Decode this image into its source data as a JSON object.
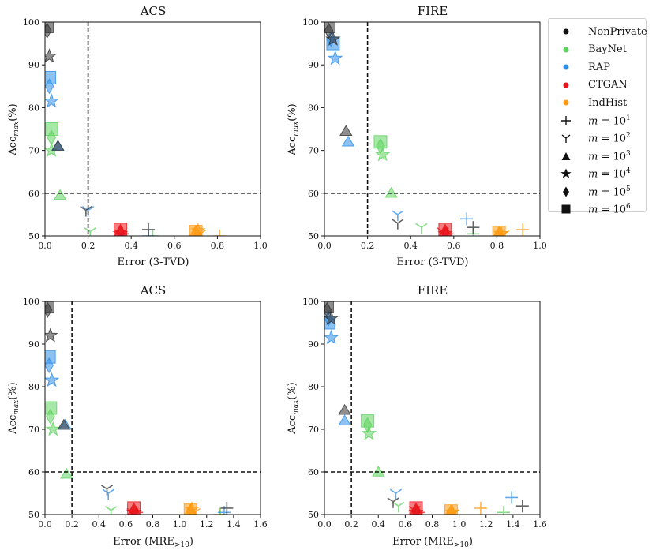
{
  "chart_data": [
    {
      "type": "scatter",
      "title": "ACS",
      "xlabel": "Error (3-TVD)",
      "ylabel": "Acc_max (%)",
      "xlim": [
        0,
        1.0
      ],
      "ylim": [
        50,
        100
      ],
      "xticks": [
        "0.0",
        "0.2",
        "0.4",
        "0.6",
        "0.8",
        "1.0"
      ],
      "xtick_values": [
        0,
        0.2,
        0.4,
        0.6,
        0.8,
        1.0
      ],
      "yticks": [
        "50",
        "60",
        "70",
        "80",
        "90",
        "100"
      ],
      "ytick_values": [
        50,
        60,
        70,
        80,
        90,
        100
      ],
      "hline": 60,
      "vline": 0.2,
      "points": [
        {
          "method": "NonPrivate",
          "m": "1e5",
          "x": 0.01,
          "y": 98
        },
        {
          "method": "NonPrivate",
          "m": "1e6",
          "x": 0.01,
          "y": 99
        },
        {
          "method": "NonPrivate",
          "m": "1e4",
          "x": 0.02,
          "y": 92
        },
        {
          "method": "NonPrivate",
          "m": "1e3",
          "x": 0.06,
          "y": 71
        },
        {
          "method": "NonPrivate",
          "m": "1e2",
          "x": 0.19,
          "y": 56
        },
        {
          "method": "NonPrivate",
          "m": "1e1",
          "x": 0.48,
          "y": 51.5
        },
        {
          "method": "BayNet",
          "m": "1e6",
          "x": 0.03,
          "y": 75
        },
        {
          "method": "BayNet",
          "m": "1e5",
          "x": 0.03,
          "y": 73
        },
        {
          "method": "BayNet",
          "m": "1e4",
          "x": 0.03,
          "y": 70
        },
        {
          "method": "BayNet",
          "m": "1e3",
          "x": 0.07,
          "y": 59.5
        },
        {
          "method": "BayNet",
          "m": "1e2",
          "x": 0.21,
          "y": 51
        },
        {
          "method": "BayNet",
          "m": "1e1",
          "x": 0.5,
          "y": 50
        },
        {
          "method": "RAP",
          "m": "1e6",
          "x": 0.02,
          "y": 87
        },
        {
          "method": "RAP",
          "m": "1e5",
          "x": 0.02,
          "y": 85
        },
        {
          "method": "RAP",
          "m": "1e4",
          "x": 0.03,
          "y": 81.5
        },
        {
          "method": "RAP",
          "m": "1e3",
          "x": 0.06,
          "y": 71
        },
        {
          "method": "RAP",
          "m": "1e2",
          "x": 0.2,
          "y": 56
        },
        {
          "method": "RAP",
          "m": "1e1",
          "x": 0.48,
          "y": 50
        },
        {
          "method": "CTGAN",
          "m": "1e6",
          "x": 0.35,
          "y": 51.5
        },
        {
          "method": "CTGAN",
          "m": "1e5",
          "x": 0.35,
          "y": 51
        },
        {
          "method": "CTGAN",
          "m": "1e4",
          "x": 0.35,
          "y": 50.5
        },
        {
          "method": "CTGAN",
          "m": "1e3",
          "x": 0.35,
          "y": 51
        },
        {
          "method": "CTGAN",
          "m": "1e2",
          "x": 0.35,
          "y": 50.5
        },
        {
          "method": "CTGAN",
          "m": "1e1",
          "x": 0.36,
          "y": 50.5
        },
        {
          "method": "IndHist",
          "m": "1e6",
          "x": 0.7,
          "y": 51
        },
        {
          "method": "IndHist",
          "m": "1e5",
          "x": 0.7,
          "y": 50.8
        },
        {
          "method": "IndHist",
          "m": "1e4",
          "x": 0.71,
          "y": 51.2
        },
        {
          "method": "IndHist",
          "m": "1e3",
          "x": 0.7,
          "y": 51
        },
        {
          "method": "IndHist",
          "m": "1e2",
          "x": 0.72,
          "y": 50.5
        },
        {
          "method": "IndHist",
          "m": "1e1",
          "x": 0.81,
          "y": 50
        }
      ]
    },
    {
      "type": "scatter",
      "title": "FIRE",
      "xlabel": "Error (3-TVD)",
      "ylabel": "Acc_max (%)",
      "xlim": [
        0,
        1.0
      ],
      "ylim": [
        50,
        100
      ],
      "xticks": [
        "0.0",
        "0.2",
        "0.4",
        "0.6",
        "0.8",
        "1.0"
      ],
      "xtick_values": [
        0,
        0.2,
        0.4,
        0.6,
        0.8,
        1.0
      ],
      "yticks": [
        "50",
        "60",
        "70",
        "80",
        "90",
        "100"
      ],
      "ytick_values": [
        50,
        60,
        70,
        80,
        90,
        100
      ],
      "hline": 60,
      "vline": 0.2,
      "points": [
        {
          "method": "NonPrivate",
          "m": "1e6",
          "x": 0.02,
          "y": 99
        },
        {
          "method": "NonPrivate",
          "m": "1e5",
          "x": 0.02,
          "y": 98
        },
        {
          "method": "NonPrivate",
          "m": "1e4",
          "x": 0.04,
          "y": 96
        },
        {
          "method": "NonPrivate",
          "m": "1e3",
          "x": 0.1,
          "y": 74.5
        },
        {
          "method": "NonPrivate",
          "m": "1e2",
          "x": 0.34,
          "y": 53
        },
        {
          "method": "NonPrivate",
          "m": "1e1",
          "x": 0.69,
          "y": 52
        },
        {
          "method": "BayNet",
          "m": "1e6",
          "x": 0.26,
          "y": 72
        },
        {
          "method": "BayNet",
          "m": "1e5",
          "x": 0.26,
          "y": 71
        },
        {
          "method": "BayNet",
          "m": "1e4",
          "x": 0.27,
          "y": 69
        },
        {
          "method": "BayNet",
          "m": "1e3",
          "x": 0.31,
          "y": 60
        },
        {
          "method": "BayNet",
          "m": "1e2",
          "x": 0.45,
          "y": 52
        },
        {
          "method": "BayNet",
          "m": "1e1",
          "x": 0.69,
          "y": 50.5
        },
        {
          "method": "RAP",
          "m": "1e6",
          "x": 0.04,
          "y": 95
        },
        {
          "method": "RAP",
          "m": "1e5",
          "x": 0.03,
          "y": 96
        },
        {
          "method": "RAP",
          "m": "1e4",
          "x": 0.05,
          "y": 91.5
        },
        {
          "method": "RAP",
          "m": "1e3",
          "x": 0.11,
          "y": 72
        },
        {
          "method": "RAP",
          "m": "1e2",
          "x": 0.34,
          "y": 55
        },
        {
          "method": "RAP",
          "m": "1e1",
          "x": 0.66,
          "y": 54
        },
        {
          "method": "CTGAN",
          "m": "1e6",
          "x": 0.56,
          "y": 51.5
        },
        {
          "method": "CTGAN",
          "m": "1e5",
          "x": 0.56,
          "y": 51
        },
        {
          "method": "CTGAN",
          "m": "1e4",
          "x": 0.56,
          "y": 50.5
        },
        {
          "method": "CTGAN",
          "m": "1e3",
          "x": 0.56,
          "y": 51
        },
        {
          "method": "CTGAN",
          "m": "1e2",
          "x": 0.55,
          "y": 51
        },
        {
          "method": "CTGAN",
          "m": "1e1",
          "x": 0.57,
          "y": 50.5
        },
        {
          "method": "IndHist",
          "m": "1e6",
          "x": 0.81,
          "y": 50.8
        },
        {
          "method": "IndHist",
          "m": "1e5",
          "x": 0.81,
          "y": 50.5
        },
        {
          "method": "IndHist",
          "m": "1e4",
          "x": 0.82,
          "y": 50.5
        },
        {
          "method": "IndHist",
          "m": "1e3",
          "x": 0.81,
          "y": 50.8
        },
        {
          "method": "IndHist",
          "m": "1e2",
          "x": 0.83,
          "y": 50.3
        },
        {
          "method": "IndHist",
          "m": "1e1",
          "x": 0.92,
          "y": 51.5
        }
      ]
    },
    {
      "type": "scatter",
      "title": "ACS",
      "xlabel": "Error (MRE>10)",
      "ylabel": "Acc_max (%)",
      "xlim": [
        0,
        1.6
      ],
      "ylim": [
        50,
        100
      ],
      "xticks": [
        "0.0",
        "0.2",
        "0.4",
        "0.6",
        "0.8",
        "1.0",
        "1.2",
        "1.4",
        "1.6"
      ],
      "xtick_values": [
        0,
        0.2,
        0.4,
        0.6,
        0.8,
        1.0,
        1.2,
        1.4,
        1.6
      ],
      "yticks": [
        "50",
        "60",
        "70",
        "80",
        "90",
        "100"
      ],
      "ytick_values": [
        50,
        60,
        70,
        80,
        90,
        100
      ],
      "hline": 60,
      "vline": 0.2,
      "points": [
        {
          "method": "NonPrivate",
          "m": "1e5",
          "x": 0.02,
          "y": 98
        },
        {
          "method": "NonPrivate",
          "m": "1e6",
          "x": 0.02,
          "y": 99
        },
        {
          "method": "NonPrivate",
          "m": "1e4",
          "x": 0.04,
          "y": 92
        },
        {
          "method": "NonPrivate",
          "m": "1e3",
          "x": 0.14,
          "y": 71
        },
        {
          "method": "NonPrivate",
          "m": "1e2",
          "x": 0.46,
          "y": 56
        },
        {
          "method": "NonPrivate",
          "m": "1e1",
          "x": 1.35,
          "y": 51.5
        },
        {
          "method": "BayNet",
          "m": "1e6",
          "x": 0.04,
          "y": 75
        },
        {
          "method": "BayNet",
          "m": "1e5",
          "x": 0.04,
          "y": 73
        },
        {
          "method": "BayNet",
          "m": "1e4",
          "x": 0.06,
          "y": 70
        },
        {
          "method": "BayNet",
          "m": "1e3",
          "x": 0.16,
          "y": 59.5
        },
        {
          "method": "BayNet",
          "m": "1e2",
          "x": 0.49,
          "y": 51
        },
        {
          "method": "BayNet",
          "m": "1e1",
          "x": 1.3,
          "y": 50
        },
        {
          "method": "RAP",
          "m": "1e6",
          "x": 0.03,
          "y": 87
        },
        {
          "method": "RAP",
          "m": "1e5",
          "x": 0.03,
          "y": 85
        },
        {
          "method": "RAP",
          "m": "1e4",
          "x": 0.05,
          "y": 81.5
        },
        {
          "method": "RAP",
          "m": "1e3",
          "x": 0.15,
          "y": 71
        },
        {
          "method": "RAP",
          "m": "1e2",
          "x": 0.47,
          "y": 55
        },
        {
          "method": "RAP",
          "m": "1e1",
          "x": 1.33,
          "y": 50.5
        },
        {
          "method": "CTGAN",
          "m": "1e6",
          "x": 0.66,
          "y": 51.5
        },
        {
          "method": "CTGAN",
          "m": "1e5",
          "x": 0.66,
          "y": 51
        },
        {
          "method": "CTGAN",
          "m": "1e4",
          "x": 0.66,
          "y": 50.5
        },
        {
          "method": "CTGAN",
          "m": "1e3",
          "x": 0.66,
          "y": 51
        },
        {
          "method": "CTGAN",
          "m": "1e2",
          "x": 0.65,
          "y": 50.5
        },
        {
          "method": "CTGAN",
          "m": "1e1",
          "x": 0.68,
          "y": 50.5
        },
        {
          "method": "IndHist",
          "m": "1e6",
          "x": 1.08,
          "y": 51
        },
        {
          "method": "IndHist",
          "m": "1e5",
          "x": 1.08,
          "y": 50.8
        },
        {
          "method": "IndHist",
          "m": "1e4",
          "x": 1.09,
          "y": 51.2
        },
        {
          "method": "IndHist",
          "m": "1e3",
          "x": 1.08,
          "y": 51
        },
        {
          "method": "IndHist",
          "m": "1e2",
          "x": 1.11,
          "y": 50.5
        },
        {
          "method": "IndHist",
          "m": "1e1",
          "x": 1.3,
          "y": 50
        }
      ]
    },
    {
      "type": "scatter",
      "title": "FIRE",
      "xlabel": "Error (MRE>10)",
      "ylabel": "Acc_max (%)",
      "xlim": [
        0,
        1.6
      ],
      "ylim": [
        50,
        100
      ],
      "xticks": [
        "0.0",
        "0.2",
        "0.4",
        "0.6",
        "0.8",
        "1.0",
        "1.2",
        "1.4",
        "1.6"
      ],
      "xtick_values": [
        0,
        0.2,
        0.4,
        0.6,
        0.8,
        1.0,
        1.2,
        1.4,
        1.6
      ],
      "yticks": [
        "50",
        "60",
        "70",
        "80",
        "90",
        "100"
      ],
      "ytick_values": [
        50,
        60,
        70,
        80,
        90,
        100
      ],
      "hline": 60,
      "vline": 0.2,
      "points": [
        {
          "method": "NonPrivate",
          "m": "1e6",
          "x": 0.02,
          "y": 99
        },
        {
          "method": "NonPrivate",
          "m": "1e5",
          "x": 0.02,
          "y": 98
        },
        {
          "method": "NonPrivate",
          "m": "1e4",
          "x": 0.05,
          "y": 96
        },
        {
          "method": "NonPrivate",
          "m": "1e3",
          "x": 0.15,
          "y": 74.5
        },
        {
          "method": "NonPrivate",
          "m": "1e2",
          "x": 0.51,
          "y": 53
        },
        {
          "method": "NonPrivate",
          "m": "1e1",
          "x": 1.47,
          "y": 52
        },
        {
          "method": "BayNet",
          "m": "1e6",
          "x": 0.32,
          "y": 72
        },
        {
          "method": "BayNet",
          "m": "1e5",
          "x": 0.32,
          "y": 71
        },
        {
          "method": "BayNet",
          "m": "1e4",
          "x": 0.33,
          "y": 69
        },
        {
          "method": "BayNet",
          "m": "1e3",
          "x": 0.4,
          "y": 60
        },
        {
          "method": "BayNet",
          "m": "1e2",
          "x": 0.55,
          "y": 52
        },
        {
          "method": "BayNet",
          "m": "1e1",
          "x": 1.33,
          "y": 50.5
        },
        {
          "method": "RAP",
          "m": "1e6",
          "x": 0.03,
          "y": 95
        },
        {
          "method": "RAP",
          "m": "1e5",
          "x": 0.03,
          "y": 96
        },
        {
          "method": "RAP",
          "m": "1e4",
          "x": 0.05,
          "y": 91.5
        },
        {
          "method": "RAP",
          "m": "1e3",
          "x": 0.15,
          "y": 72
        },
        {
          "method": "RAP",
          "m": "1e2",
          "x": 0.53,
          "y": 55
        },
        {
          "method": "RAP",
          "m": "1e1",
          "x": 1.39,
          "y": 54
        },
        {
          "method": "CTGAN",
          "m": "1e6",
          "x": 0.68,
          "y": 51.5
        },
        {
          "method": "CTGAN",
          "m": "1e5",
          "x": 0.68,
          "y": 51
        },
        {
          "method": "CTGAN",
          "m": "1e4",
          "x": 0.68,
          "y": 50.5
        },
        {
          "method": "CTGAN",
          "m": "1e3",
          "x": 0.68,
          "y": 51
        },
        {
          "method": "CTGAN",
          "m": "1e2",
          "x": 0.67,
          "y": 51
        },
        {
          "method": "CTGAN",
          "m": "1e1",
          "x": 0.7,
          "y": 50.5
        },
        {
          "method": "IndHist",
          "m": "1e6",
          "x": 0.94,
          "y": 50.8
        },
        {
          "method": "IndHist",
          "m": "1e5",
          "x": 0.94,
          "y": 50.5
        },
        {
          "method": "IndHist",
          "m": "1e4",
          "x": 0.95,
          "y": 50.5
        },
        {
          "method": "IndHist",
          "m": "1e3",
          "x": 0.94,
          "y": 50.8
        },
        {
          "method": "IndHist",
          "m": "1e2",
          "x": 0.96,
          "y": 50.3
        },
        {
          "method": "IndHist",
          "m": "1e1",
          "x": 1.16,
          "y": 51.5
        }
      ]
    }
  ],
  "methods": [
    {
      "name": "NonPrivate",
      "color": "#333333"
    },
    {
      "name": "BayNet",
      "color": "#5fd35f"
    },
    {
      "name": "RAP",
      "color": "#2d8ee8"
    },
    {
      "name": "CTGAN",
      "color": "#e8161b"
    },
    {
      "name": "IndHist",
      "color": "#ff9a12"
    }
  ],
  "legend": {
    "methods": [
      "NonPrivate",
      "BayNet",
      "RAP",
      "CTGAN",
      "IndHist"
    ],
    "sizes": [
      {
        "var": "m",
        "eq": " = 10",
        "exp": "1",
        "marker": "plus"
      },
      {
        "var": "m",
        "eq": " = 10",
        "exp": "2",
        "marker": "tri"
      },
      {
        "var": "m",
        "eq": " = 10",
        "exp": "3",
        "marker": "triangle"
      },
      {
        "var": "m",
        "eq": " = 10",
        "exp": "4",
        "marker": "star"
      },
      {
        "var": "m",
        "eq": " = 10",
        "exp": "5",
        "marker": "diamond"
      },
      {
        "var": "m",
        "eq": " = 10",
        "exp": "6",
        "marker": "square"
      }
    ]
  },
  "axis_text": {
    "ylabel_main": "Acc",
    "ylabel_sub": "max",
    "ylabel_tail": "(%)",
    "mre_main": "Error (MRE",
    "mre_sub": ">10",
    "mre_tail": ")"
  }
}
